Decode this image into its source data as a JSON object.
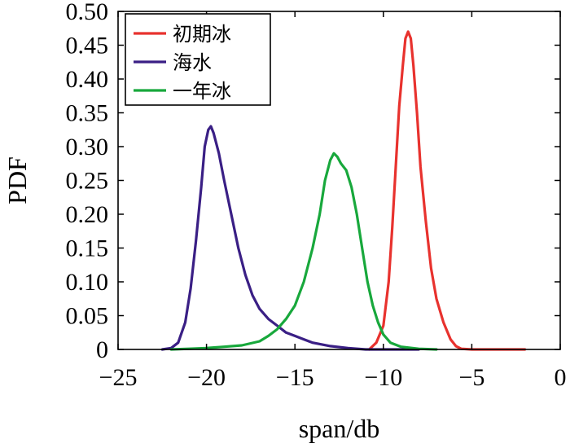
{
  "chart_data": {
    "type": "line",
    "xlabel": "span/db",
    "ylabel": "PDF",
    "xlim": [
      -25,
      0
    ],
    "ylim": [
      0,
      0.5
    ],
    "xticks": [
      -25,
      -20,
      -15,
      -10,
      -5,
      0
    ],
    "xtick_labels": [
      "−25",
      "−20",
      "−15",
      "−10",
      "−5",
      "0"
    ],
    "yticks": [
      0,
      0.05,
      0.1,
      0.15,
      0.2,
      0.25,
      0.3,
      0.35,
      0.4,
      0.45,
      0.5
    ],
    "ytick_labels": [
      "0",
      "0.05",
      "0.10",
      "0.15",
      "0.20",
      "0.25",
      "0.30",
      "0.35",
      "0.40",
      "0.45",
      "0.50"
    ],
    "grid": false,
    "legend_position": "top-left",
    "series": [
      {
        "name": "初期冰",
        "color": "#e8322e",
        "points": [
          [
            -10.8,
            0.0
          ],
          [
            -10.4,
            0.01
          ],
          [
            -10.0,
            0.035
          ],
          [
            -9.7,
            0.1
          ],
          [
            -9.5,
            0.18
          ],
          [
            -9.3,
            0.27
          ],
          [
            -9.1,
            0.36
          ],
          [
            -8.9,
            0.42
          ],
          [
            -8.75,
            0.46
          ],
          [
            -8.6,
            0.47
          ],
          [
            -8.45,
            0.46
          ],
          [
            -8.3,
            0.42
          ],
          [
            -8.1,
            0.35
          ],
          [
            -7.9,
            0.27
          ],
          [
            -7.6,
            0.19
          ],
          [
            -7.3,
            0.12
          ],
          [
            -7.0,
            0.075
          ],
          [
            -6.6,
            0.04
          ],
          [
            -6.2,
            0.015
          ],
          [
            -5.9,
            0.005
          ],
          [
            -5.6,
            0.001
          ],
          [
            -5.0,
            0.0
          ],
          [
            -2.0,
            0.0
          ]
        ]
      },
      {
        "name": "海水",
        "color": "#3a1f85",
        "points": [
          [
            -22.5,
            0.0
          ],
          [
            -22.0,
            0.002
          ],
          [
            -21.6,
            0.01
          ],
          [
            -21.2,
            0.04
          ],
          [
            -20.9,
            0.09
          ],
          [
            -20.6,
            0.16
          ],
          [
            -20.3,
            0.24
          ],
          [
            -20.1,
            0.3
          ],
          [
            -19.9,
            0.325
          ],
          [
            -19.75,
            0.33
          ],
          [
            -19.6,
            0.32
          ],
          [
            -19.3,
            0.29
          ],
          [
            -19.0,
            0.25
          ],
          [
            -18.6,
            0.2
          ],
          [
            -18.2,
            0.15
          ],
          [
            -17.8,
            0.11
          ],
          [
            -17.4,
            0.08
          ],
          [
            -17.0,
            0.06
          ],
          [
            -16.5,
            0.045
          ],
          [
            -16.0,
            0.035
          ],
          [
            -15.5,
            0.025
          ],
          [
            -15.0,
            0.02
          ],
          [
            -14.5,
            0.015
          ],
          [
            -14.0,
            0.01
          ],
          [
            -13.0,
            0.005
          ],
          [
            -12.0,
            0.002
          ],
          [
            -11.0,
            0.0
          ],
          [
            -8.0,
            0.0
          ]
        ]
      },
      {
        "name": "一年冰",
        "color": "#18a83c",
        "points": [
          [
            -22.0,
            0.0
          ],
          [
            -21.0,
            0.001
          ],
          [
            -20.0,
            0.002
          ],
          [
            -19.0,
            0.004
          ],
          [
            -18.0,
            0.006
          ],
          [
            -17.0,
            0.012
          ],
          [
            -16.5,
            0.02
          ],
          [
            -16.0,
            0.03
          ],
          [
            -15.5,
            0.045
          ],
          [
            -15.0,
            0.065
          ],
          [
            -14.5,
            0.1
          ],
          [
            -14.0,
            0.15
          ],
          [
            -13.6,
            0.2
          ],
          [
            -13.3,
            0.25
          ],
          [
            -13.0,
            0.28
          ],
          [
            -12.8,
            0.29
          ],
          [
            -12.6,
            0.285
          ],
          [
            -12.4,
            0.275
          ],
          [
            -12.1,
            0.265
          ],
          [
            -11.8,
            0.24
          ],
          [
            -11.5,
            0.2
          ],
          [
            -11.2,
            0.15
          ],
          [
            -10.9,
            0.1
          ],
          [
            -10.6,
            0.065
          ],
          [
            -10.3,
            0.04
          ],
          [
            -10.0,
            0.022
          ],
          [
            -9.6,
            0.01
          ],
          [
            -9.0,
            0.004
          ],
          [
            -8.0,
            0.001
          ],
          [
            -7.0,
            0.0
          ]
        ]
      }
    ]
  }
}
